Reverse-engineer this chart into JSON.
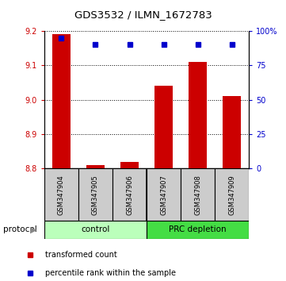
{
  "title": "GDS3532 / ILMN_1672783",
  "samples": [
    "GSM347904",
    "GSM347905",
    "GSM347906",
    "GSM347907",
    "GSM347908",
    "GSM347909"
  ],
  "transformed_counts": [
    9.19,
    8.81,
    8.82,
    9.04,
    9.11,
    9.01
  ],
  "percentile_ranks": [
    95,
    90,
    90,
    90,
    90,
    90
  ],
  "y_min": 8.8,
  "y_max": 9.2,
  "y_ticks": [
    8.8,
    8.9,
    9.0,
    9.1,
    9.2
  ],
  "right_y_ticks": [
    0,
    25,
    50,
    75,
    100
  ],
  "right_y_labels": [
    "0",
    "25",
    "50",
    "75",
    "100%"
  ],
  "bar_color": "#cc0000",
  "marker_color": "#0000cc",
  "bar_baseline": 8.8,
  "groups": [
    {
      "label": "control",
      "color": "#bbffbb"
    },
    {
      "label": "PRC depletion",
      "color": "#44dd44"
    }
  ],
  "protocol_label": "protocol",
  "legend_items": [
    {
      "color": "#cc0000",
      "label": "transformed count"
    },
    {
      "color": "#0000cc",
      "label": "percentile rank within the sample"
    }
  ],
  "sample_box_color": "#cccccc",
  "tick_label_color_left": "#cc0000",
  "tick_label_color_right": "#0000cc"
}
